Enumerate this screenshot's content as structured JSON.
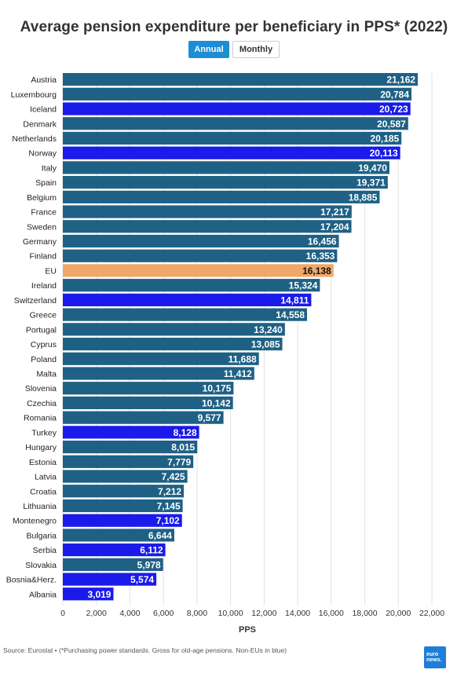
{
  "title": "Average pension expenditure per beneficiary in PPS* (2022)",
  "tabs": [
    {
      "label": "Annual",
      "active": true
    },
    {
      "label": "Monthly",
      "active": false
    }
  ],
  "footer": "Source: Eurostat • (*Purchasing power standards. Gross for old-age pensions. Non-EUs in blue)",
  "logo": {
    "line1": "euro",
    "line2": "news."
  },
  "colors": {
    "eu_member": "#1f6185",
    "non_eu": "#1a1aea",
    "eu_average": "#f0a868"
  },
  "chart_data": {
    "type": "bar",
    "orientation": "horizontal",
    "xlabel": "PPS",
    "xlim": [
      0,
      22000
    ],
    "xticks": [
      "0",
      "2,000",
      "4,000",
      "6,000",
      "8,000",
      "10,000",
      "12,000",
      "14,000",
      "16,000",
      "18,000",
      "20,000",
      "22,000"
    ],
    "grid": true,
    "categories": [
      "Austria",
      "Luxembourg",
      "Iceland",
      "Denmark",
      "Netherlands",
      "Norway",
      "Italy",
      "Spain",
      "Belgium",
      "France",
      "Sweden",
      "Germany",
      "Finland",
      "EU",
      "Ireland",
      "Switzerland",
      "Greece",
      "Portugal",
      "Cyprus",
      "Poland",
      "Malta",
      "Slovenia",
      "Czechia",
      "Romania",
      "Turkey",
      "Hungary",
      "Estonia",
      "Latvia",
      "Croatia",
      "Lithuania",
      "Montenegro",
      "Bulgaria",
      "Serbia",
      "Slovakia",
      "Bosnia&Herz.",
      "Albania"
    ],
    "values": [
      21162,
      20784,
      20723,
      20587,
      20185,
      20113,
      19470,
      19371,
      18885,
      17217,
      17204,
      16456,
      16353,
      16138,
      15324,
      14811,
      14558,
      13240,
      13085,
      11688,
      11412,
      10175,
      10142,
      9577,
      8128,
      8015,
      7779,
      7425,
      7212,
      7145,
      7102,
      6644,
      6112,
      5978,
      5574,
      3019
    ],
    "labels": [
      "21,162",
      "20,784",
      "20,723",
      "20,587",
      "20,185",
      "20,113",
      "19,470",
      "19,371",
      "18,885",
      "17,217",
      "17,204",
      "16,456",
      "16,353",
      "16,138",
      "15,324",
      "14,811",
      "14,558",
      "13,240",
      "13,085",
      "11,688",
      "11,412",
      "10,175",
      "10,142",
      "9,577",
      "8,128",
      "8,015",
      "7,779",
      "7,425",
      "7,212",
      "7,145",
      "7,102",
      "6,644",
      "6,112",
      "5,978",
      "5,574",
      "3,019"
    ],
    "group": [
      "eu",
      "eu",
      "non_eu",
      "eu",
      "eu",
      "non_eu",
      "eu",
      "eu",
      "eu",
      "eu",
      "eu",
      "eu",
      "eu",
      "eu_average",
      "eu",
      "non_eu",
      "eu",
      "eu",
      "eu",
      "eu",
      "eu",
      "eu",
      "eu",
      "eu",
      "non_eu",
      "eu",
      "eu",
      "eu",
      "eu",
      "eu",
      "non_eu",
      "eu",
      "non_eu",
      "eu",
      "non_eu",
      "non_eu"
    ]
  }
}
